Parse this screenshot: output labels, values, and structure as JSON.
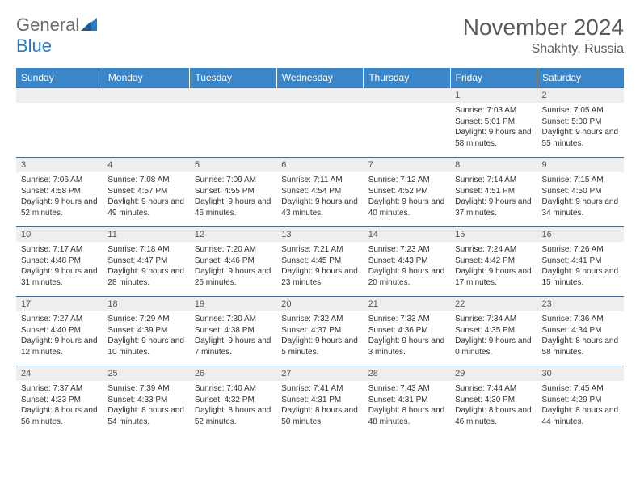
{
  "brand": {
    "name_gray": "General",
    "name_blue": "Blue"
  },
  "title": "November 2024",
  "location": "Shakhty, Russia",
  "colors": {
    "header_bg": "#3b86c8",
    "header_text": "#ffffff",
    "daynum_bg": "#eeeeee",
    "row_border": "#4a6a8a",
    "logo_gray": "#6b6b6b",
    "logo_blue": "#2b78c5"
  },
  "day_headers": [
    "Sunday",
    "Monday",
    "Tuesday",
    "Wednesday",
    "Thursday",
    "Friday",
    "Saturday"
  ],
  "weeks": [
    [
      {
        "n": "",
        "sr": "",
        "ss": "",
        "dl": ""
      },
      {
        "n": "",
        "sr": "",
        "ss": "",
        "dl": ""
      },
      {
        "n": "",
        "sr": "",
        "ss": "",
        "dl": ""
      },
      {
        "n": "",
        "sr": "",
        "ss": "",
        "dl": ""
      },
      {
        "n": "",
        "sr": "",
        "ss": "",
        "dl": ""
      },
      {
        "n": "1",
        "sr": "Sunrise: 7:03 AM",
        "ss": "Sunset: 5:01 PM",
        "dl": "Daylight: 9 hours and 58 minutes."
      },
      {
        "n": "2",
        "sr": "Sunrise: 7:05 AM",
        "ss": "Sunset: 5:00 PM",
        "dl": "Daylight: 9 hours and 55 minutes."
      }
    ],
    [
      {
        "n": "3",
        "sr": "Sunrise: 7:06 AM",
        "ss": "Sunset: 4:58 PM",
        "dl": "Daylight: 9 hours and 52 minutes."
      },
      {
        "n": "4",
        "sr": "Sunrise: 7:08 AM",
        "ss": "Sunset: 4:57 PM",
        "dl": "Daylight: 9 hours and 49 minutes."
      },
      {
        "n": "5",
        "sr": "Sunrise: 7:09 AM",
        "ss": "Sunset: 4:55 PM",
        "dl": "Daylight: 9 hours and 46 minutes."
      },
      {
        "n": "6",
        "sr": "Sunrise: 7:11 AM",
        "ss": "Sunset: 4:54 PM",
        "dl": "Daylight: 9 hours and 43 minutes."
      },
      {
        "n": "7",
        "sr": "Sunrise: 7:12 AM",
        "ss": "Sunset: 4:52 PM",
        "dl": "Daylight: 9 hours and 40 minutes."
      },
      {
        "n": "8",
        "sr": "Sunrise: 7:14 AM",
        "ss": "Sunset: 4:51 PM",
        "dl": "Daylight: 9 hours and 37 minutes."
      },
      {
        "n": "9",
        "sr": "Sunrise: 7:15 AM",
        "ss": "Sunset: 4:50 PM",
        "dl": "Daylight: 9 hours and 34 minutes."
      }
    ],
    [
      {
        "n": "10",
        "sr": "Sunrise: 7:17 AM",
        "ss": "Sunset: 4:48 PM",
        "dl": "Daylight: 9 hours and 31 minutes."
      },
      {
        "n": "11",
        "sr": "Sunrise: 7:18 AM",
        "ss": "Sunset: 4:47 PM",
        "dl": "Daylight: 9 hours and 28 minutes."
      },
      {
        "n": "12",
        "sr": "Sunrise: 7:20 AM",
        "ss": "Sunset: 4:46 PM",
        "dl": "Daylight: 9 hours and 26 minutes."
      },
      {
        "n": "13",
        "sr": "Sunrise: 7:21 AM",
        "ss": "Sunset: 4:45 PM",
        "dl": "Daylight: 9 hours and 23 minutes."
      },
      {
        "n": "14",
        "sr": "Sunrise: 7:23 AM",
        "ss": "Sunset: 4:43 PM",
        "dl": "Daylight: 9 hours and 20 minutes."
      },
      {
        "n": "15",
        "sr": "Sunrise: 7:24 AM",
        "ss": "Sunset: 4:42 PM",
        "dl": "Daylight: 9 hours and 17 minutes."
      },
      {
        "n": "16",
        "sr": "Sunrise: 7:26 AM",
        "ss": "Sunset: 4:41 PM",
        "dl": "Daylight: 9 hours and 15 minutes."
      }
    ],
    [
      {
        "n": "17",
        "sr": "Sunrise: 7:27 AM",
        "ss": "Sunset: 4:40 PM",
        "dl": "Daylight: 9 hours and 12 minutes."
      },
      {
        "n": "18",
        "sr": "Sunrise: 7:29 AM",
        "ss": "Sunset: 4:39 PM",
        "dl": "Daylight: 9 hours and 10 minutes."
      },
      {
        "n": "19",
        "sr": "Sunrise: 7:30 AM",
        "ss": "Sunset: 4:38 PM",
        "dl": "Daylight: 9 hours and 7 minutes."
      },
      {
        "n": "20",
        "sr": "Sunrise: 7:32 AM",
        "ss": "Sunset: 4:37 PM",
        "dl": "Daylight: 9 hours and 5 minutes."
      },
      {
        "n": "21",
        "sr": "Sunrise: 7:33 AM",
        "ss": "Sunset: 4:36 PM",
        "dl": "Daylight: 9 hours and 3 minutes."
      },
      {
        "n": "22",
        "sr": "Sunrise: 7:34 AM",
        "ss": "Sunset: 4:35 PM",
        "dl": "Daylight: 9 hours and 0 minutes."
      },
      {
        "n": "23",
        "sr": "Sunrise: 7:36 AM",
        "ss": "Sunset: 4:34 PM",
        "dl": "Daylight: 8 hours and 58 minutes."
      }
    ],
    [
      {
        "n": "24",
        "sr": "Sunrise: 7:37 AM",
        "ss": "Sunset: 4:33 PM",
        "dl": "Daylight: 8 hours and 56 minutes."
      },
      {
        "n": "25",
        "sr": "Sunrise: 7:39 AM",
        "ss": "Sunset: 4:33 PM",
        "dl": "Daylight: 8 hours and 54 minutes."
      },
      {
        "n": "26",
        "sr": "Sunrise: 7:40 AM",
        "ss": "Sunset: 4:32 PM",
        "dl": "Daylight: 8 hours and 52 minutes."
      },
      {
        "n": "27",
        "sr": "Sunrise: 7:41 AM",
        "ss": "Sunset: 4:31 PM",
        "dl": "Daylight: 8 hours and 50 minutes."
      },
      {
        "n": "28",
        "sr": "Sunrise: 7:43 AM",
        "ss": "Sunset: 4:31 PM",
        "dl": "Daylight: 8 hours and 48 minutes."
      },
      {
        "n": "29",
        "sr": "Sunrise: 7:44 AM",
        "ss": "Sunset: 4:30 PM",
        "dl": "Daylight: 8 hours and 46 minutes."
      },
      {
        "n": "30",
        "sr": "Sunrise: 7:45 AM",
        "ss": "Sunset: 4:29 PM",
        "dl": "Daylight: 8 hours and 44 minutes."
      }
    ]
  ]
}
